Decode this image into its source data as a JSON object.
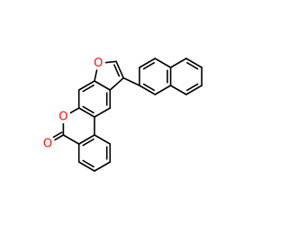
{
  "atom_labels": [
    "O",
    "O",
    "O"
  ]
}
